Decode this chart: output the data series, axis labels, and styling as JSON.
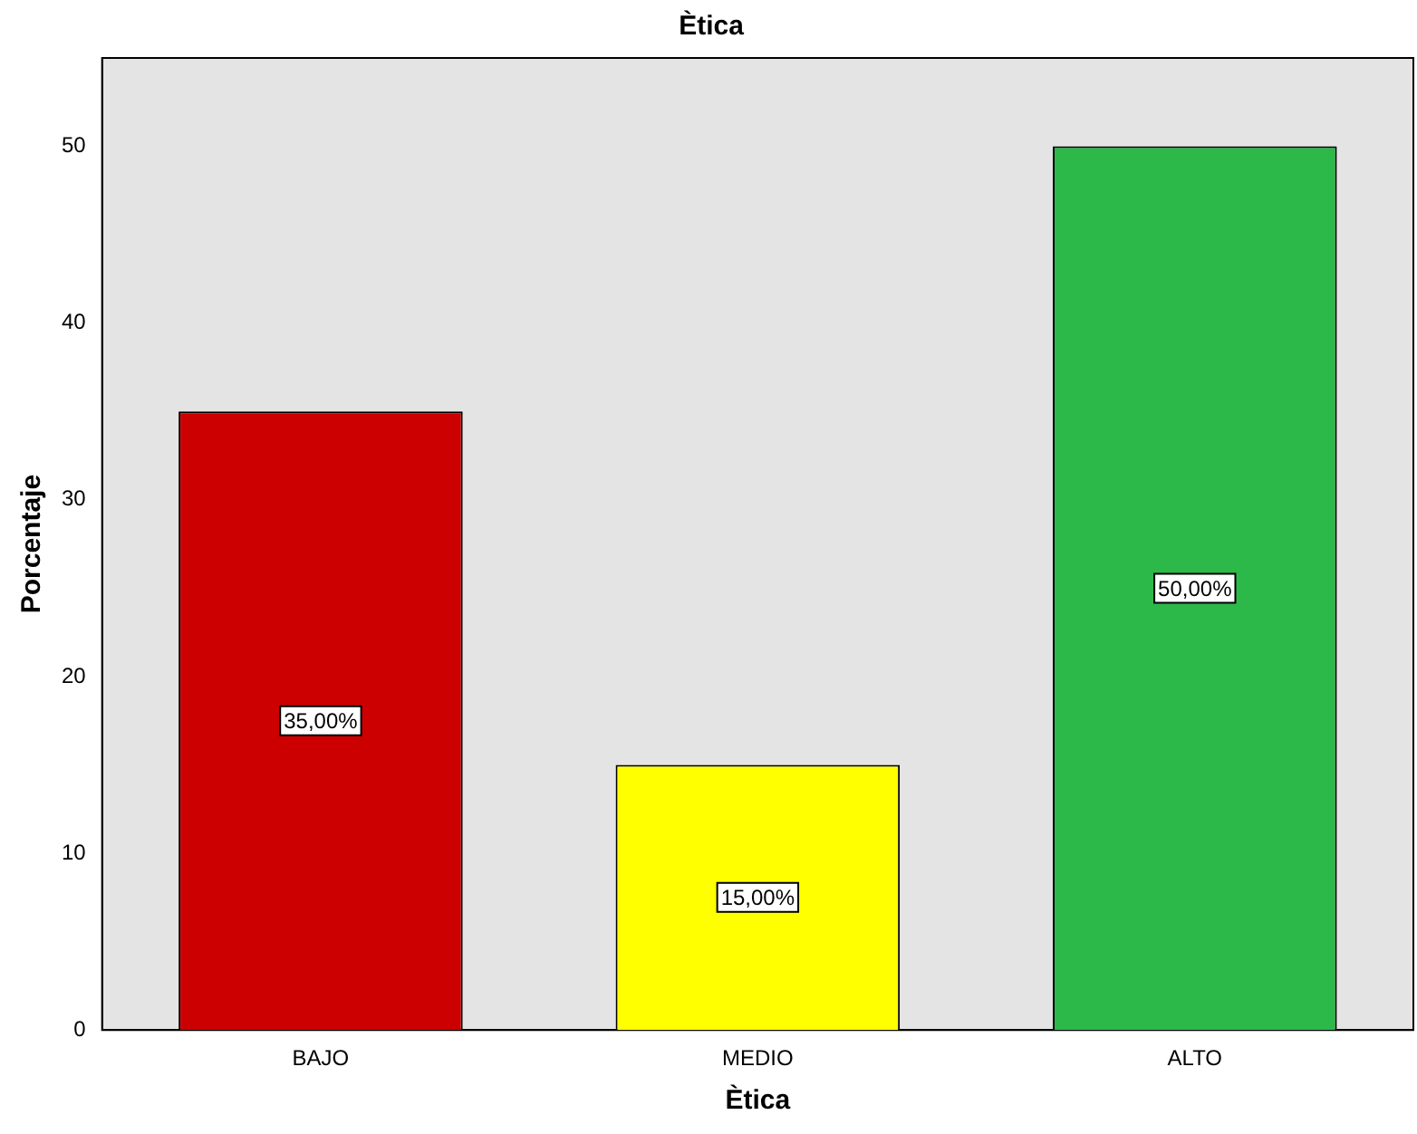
{
  "chart_data": {
    "type": "bar",
    "title": "Ètica",
    "xlabel": "Ètica",
    "ylabel": "Porcentaje",
    "categories": [
      "BAJO",
      "MEDIO",
      "ALTO"
    ],
    "values": [
      35,
      15,
      50
    ],
    "colors": [
      "#cc0000",
      "#ffff00",
      "#2db84a"
    ],
    "value_labels": [
      "35,00%",
      "15,00%",
      "50,00%"
    ],
    "ylim": [
      0,
      55
    ],
    "yticks": [
      0,
      10,
      20,
      30,
      40,
      50
    ],
    "grid": false,
    "legend": false
  }
}
